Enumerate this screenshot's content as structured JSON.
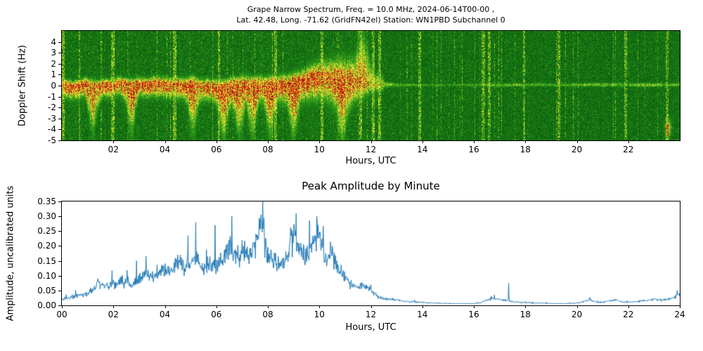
{
  "figure": {
    "background": "#ffffff",
    "axis_color": "#000000",
    "line_color": "#1f77b4"
  },
  "spectrogram_panel": {
    "title_line1": "Grape Narrow Spectrum, Freq. = 10.0 MHz, 2024-06-14T00-00 ,",
    "title_line2": "Lat. 42.48, Long. -71.62 (GridFN42el) Station: WN1PBD Subchannel 0",
    "ylabel": "Doppler Shift (Hz)",
    "xlabel": "Hours, UTC",
    "xtick_labels": [
      "02",
      "04",
      "06",
      "08",
      "10",
      "12",
      "14",
      "16",
      "18",
      "20",
      "22"
    ],
    "ytick_labels": [
      "4",
      "3",
      "2",
      "1",
      "0",
      "-1",
      "-2",
      "-3",
      "-4",
      "-5"
    ]
  },
  "amplitude_panel": {
    "title": "Peak Amplitude by Minute",
    "ylabel": "Amplitude, uncalibrated units",
    "xlabel": "Hours, UTC",
    "xtick_labels": [
      "00",
      "02",
      "04",
      "06",
      "08",
      "10",
      "12",
      "14",
      "16",
      "18",
      "20",
      "22",
      "24"
    ],
    "ytick_labels": [
      "0.00",
      "0.05",
      "0.10",
      "0.15",
      "0.20",
      "0.25",
      "0.30",
      "0.35"
    ]
  },
  "chart_data": [
    {
      "type": "heatmap",
      "subtype": "doppler-spectrogram",
      "title": "Grape Narrow Spectrum, Freq. = 10.0 MHz, 2024-06-14T00-00 , Lat. 42.48, Long. -71.62 (GridFN42el) Station: WN1PBD Subchannel 0",
      "xlabel": "Hours, UTC",
      "ylabel": "Doppler Shift (Hz)",
      "xlim": [
        0,
        24
      ],
      "ylim": [
        -5,
        5
      ],
      "xticks": [
        2,
        4,
        6,
        8,
        10,
        12,
        14,
        16,
        18,
        20,
        22
      ],
      "yticks": [
        4,
        3,
        2,
        1,
        0,
        -1,
        -2,
        -3,
        -4,
        -5
      ],
      "colormap_stops": [
        [
          0.0,
          "#0a5a0e"
        ],
        [
          0.15,
          "#156e12"
        ],
        [
          0.3,
          "#1f8c16"
        ],
        [
          0.45,
          "#46a81e"
        ],
        [
          0.58,
          "#8cc828"
        ],
        [
          0.68,
          "#d2e132"
        ],
        [
          0.76,
          "#f5ef3a"
        ],
        [
          0.84,
          "#ffcf2d"
        ],
        [
          0.9,
          "#ff8c1e"
        ],
        [
          0.95,
          "#ea4b1b"
        ],
        [
          1.0,
          "#b91111"
        ]
      ],
      "band_center_hz": [
        0.0,
        -0.1,
        -0.1,
        0.0,
        0.0,
        0.1,
        -0.3,
        0.1,
        0.2,
        0.3,
        0.7,
        0.3,
        0.05,
        0.05,
        0.05,
        0.05,
        0.05,
        0.05,
        0.05,
        0.05,
        0.05,
        0.05,
        0.05,
        0.05,
        0.05
      ],
      "band_width_hz": [
        0.45,
        0.45,
        0.45,
        0.45,
        0.5,
        0.5,
        0.55,
        0.6,
        0.6,
        0.7,
        0.85,
        1.0,
        0.4,
        0.12,
        0.12,
        0.1,
        0.12,
        0.14,
        0.13,
        0.12,
        0.13,
        0.15,
        0.14,
        0.15,
        0.13
      ],
      "band_strength": [
        1,
        1,
        1,
        1,
        1,
        1,
        1,
        1,
        1,
        1,
        1,
        0.95,
        0.7,
        0.5,
        0.4,
        0.35,
        0.4,
        0.55,
        0.5,
        0.45,
        0.5,
        0.55,
        0.5,
        0.55,
        0.5
      ],
      "downward_plume_hours": [
        1.2,
        2.7,
        5.1,
        6.3,
        6.9,
        7.4,
        8.1,
        9.0,
        10.9
      ],
      "upward_plume_hours": [
        11.7
      ],
      "vertical_streak_hours": [
        0.05,
        2.0,
        4.4,
        6.1,
        8.3,
        10.1,
        11.6,
        12.1,
        12.35,
        13.9,
        16.35,
        16.6,
        17.95,
        19.3,
        21.9,
        23.5
      ],
      "hotspot": {
        "hour": 23.55,
        "hz": -3.9
      },
      "description": "Carrier band near 0 Hz: strong red core with yellow fringes 00-12 UTC, wandering up to ~+0.8 Hz near 10 UTC, wide yellow plume near 11.7 UTC, collapsing to a thin yellow line after ~12:30 UTC over speckled green noise background with sporadic vertical streaks."
    },
    {
      "type": "line",
      "title": "Peak Amplitude by Minute",
      "xlabel": "Hours, UTC",
      "ylabel": "Amplitude, uncalibrated units",
      "xlim": [
        0,
        24
      ],
      "ylim": [
        0,
        0.35
      ],
      "xticks": [
        0,
        2,
        4,
        6,
        8,
        10,
        12,
        14,
        16,
        18,
        20,
        22,
        24
      ],
      "yticks": [
        0,
        0.05,
        0.1,
        0.15,
        0.2,
        0.25,
        0.3,
        0.35
      ],
      "line_color": "#1f77b4",
      "x_step_hours": 0.25,
      "envelope": [
        0.02,
        0.025,
        0.03,
        0.035,
        0.04,
        0.055,
        0.075,
        0.065,
        0.07,
        0.08,
        0.075,
        0.07,
        0.09,
        0.1,
        0.095,
        0.11,
        0.11,
        0.12,
        0.14,
        0.13,
        0.14,
        0.16,
        0.13,
        0.13,
        0.14,
        0.15,
        0.2,
        0.17,
        0.16,
        0.17,
        0.2,
        0.3,
        0.17,
        0.14,
        0.15,
        0.16,
        0.24,
        0.18,
        0.17,
        0.2,
        0.25,
        0.15,
        0.19,
        0.12,
        0.09,
        0.07,
        0.06,
        0.07,
        0.05,
        0.03,
        0.025,
        0.02,
        0.018,
        0.015,
        0.012,
        0.011,
        0.01,
        0.009,
        0.008,
        0.007,
        0.006,
        0.006,
        0.006,
        0.006,
        0.006,
        0.008,
        0.018,
        0.022,
        0.02,
        0.018,
        0.012,
        0.01,
        0.01,
        0.009,
        0.008,
        0.007,
        0.006,
        0.006,
        0.006,
        0.007,
        0.008,
        0.012,
        0.02,
        0.01,
        0.01,
        0.015,
        0.018,
        0.012,
        0.01,
        0.012,
        0.015,
        0.018,
        0.02,
        0.018,
        0.02,
        0.025,
        0.04
      ],
      "spikes": [
        {
          "x": 1.4,
          "y": 0.09
        },
        {
          "x": 2.9,
          "y": 0.15
        },
        {
          "x": 4.6,
          "y": 0.17
        },
        {
          "x": 5.2,
          "y": 0.28
        },
        {
          "x": 6.6,
          "y": 0.3
        },
        {
          "x": 7.0,
          "y": 0.22
        },
        {
          "x": 7.8,
          "y": 0.36
        },
        {
          "x": 9.1,
          "y": 0.31
        },
        {
          "x": 9.9,
          "y": 0.3
        },
        {
          "x": 10.5,
          "y": 0.2
        },
        {
          "x": 12.0,
          "y": 0.07
        },
        {
          "x": 16.8,
          "y": 0.035
        },
        {
          "x": 17.35,
          "y": 0.075
        },
        {
          "x": 20.5,
          "y": 0.027
        },
        {
          "x": 23.9,
          "y": 0.05
        }
      ],
      "noise_fraction": 0.35
    }
  ]
}
